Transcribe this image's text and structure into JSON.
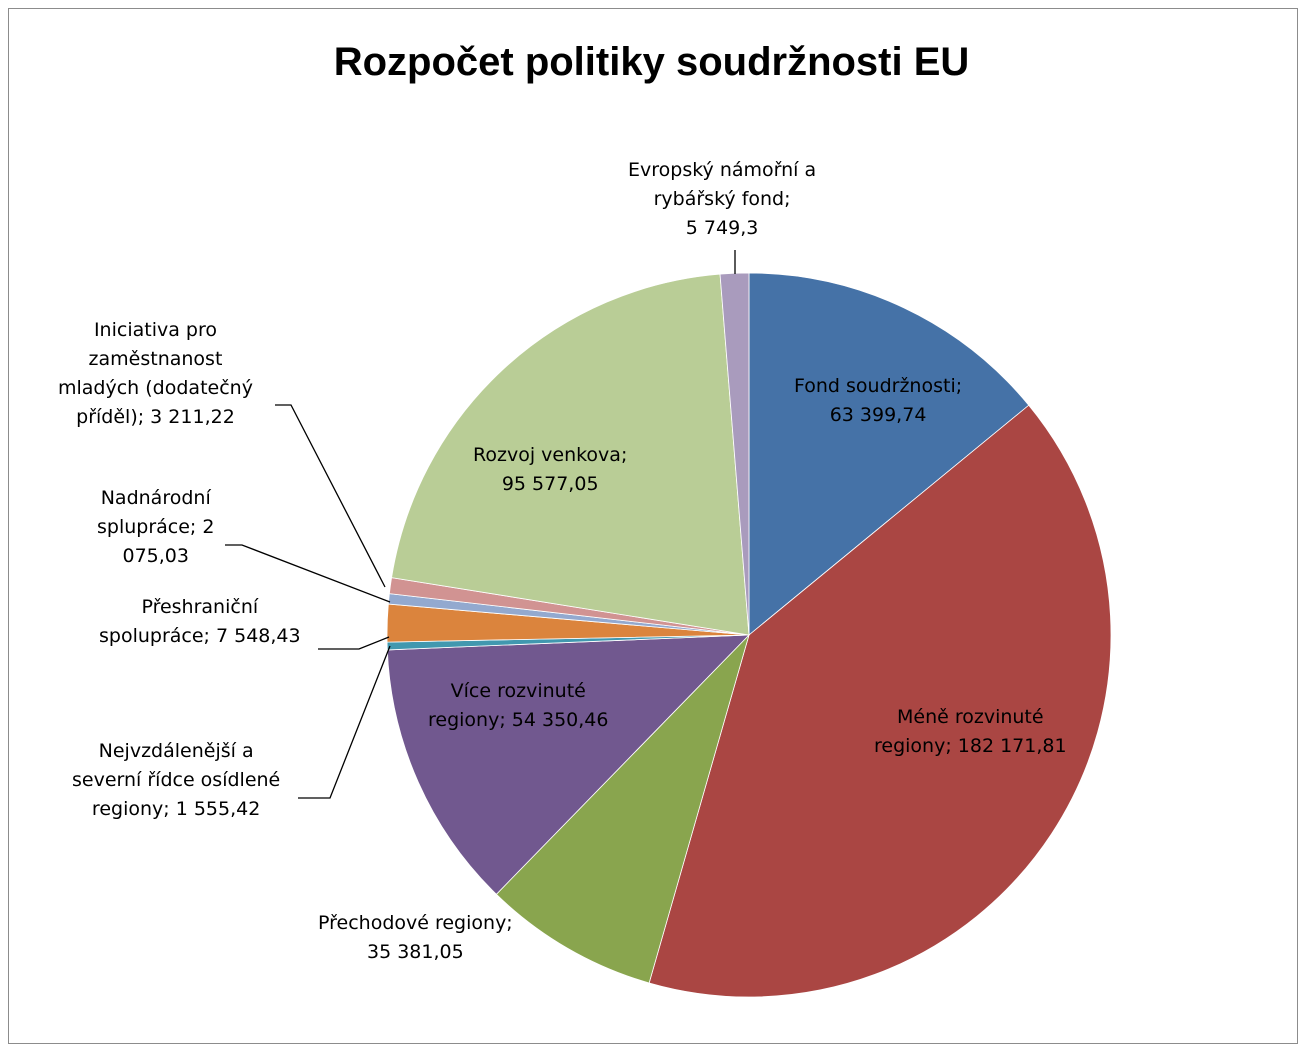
{
  "chart_data": {
    "type": "pie",
    "title": "Rozpočet politiky soudržnosti EU",
    "slices": [
      {
        "name": "Fond soudržnosti",
        "value": 63399.74,
        "value_label": "63 399,74",
        "label_lines": [
          "Fond soudržnosti;",
          "63 399,74"
        ],
        "color": "#4572A7"
      },
      {
        "name": "Méně rozvinuté regiony",
        "value": 182171.81,
        "value_label": "182 171,81",
        "label_lines": [
          "Méně rozvinuté",
          "regiony; 182 171,81"
        ],
        "color": "#AA4643"
      },
      {
        "name": "Přechodové regiony",
        "value": 35381.05,
        "value_label": "35 381,05",
        "label_lines": [
          "Přechodové regiony;",
          "35 381,05"
        ],
        "color": "#89A54E"
      },
      {
        "name": "Více rozvinuté regiony",
        "value": 54350.46,
        "value_label": "54 350,46",
        "label_lines": [
          "Více rozvinuté",
          "regiony; 54 350,46"
        ],
        "color": "#71588F"
      },
      {
        "name": "Nejvzdálenější a severní řídce osídlené regiony",
        "value": 1555.42,
        "value_label": "1 555,42",
        "label_lines": [
          "Nejvzdálenější a",
          "severní řídce osídlené",
          "regiony; 1 555,42"
        ],
        "color": "#4198AF"
      },
      {
        "name": "Přeshraniční spolupráce",
        "value": 7548.43,
        "value_label": "7 548,43",
        "label_lines": [
          "Přeshraniční",
          "spolupráce; 7 548,43"
        ],
        "color": "#DB843D"
      },
      {
        "name": "Nadnárodní splupráce",
        "value": 2075.03,
        "value_label": "2 075,03",
        "label_lines": [
          "Nadnárodní",
          "splupráce; 2",
          "075,03"
        ],
        "color": "#93A9CF"
      },
      {
        "name": "Iniciativa pro zaměstnanost mladých (dodatečný příděl)",
        "value": 3211.22,
        "value_label": "3 211,22",
        "label_lines": [
          "Iniciativa pro",
          "zaměstnanost",
          "mladých (dodatečný",
          "příděl); 3 211,22"
        ],
        "color": "#D19392"
      },
      {
        "name": "Rozvoj venkova",
        "value": 95577.05,
        "value_label": "95 577,05",
        "label_lines": [
          "Rozvoj venkova;",
          "95 577,05"
        ],
        "color": "#B9CD96"
      },
      {
        "name": "Evropský námořní a rybářský fond",
        "value": 5749.3,
        "value_label": "5 749,3",
        "label_lines": [
          "Evropský námořní a",
          "rybářský fond;",
          "5 749,3"
        ],
        "color": "#A99BBD"
      }
    ],
    "start_angle": "12 o'clock",
    "direction": "clockwise",
    "legend": "none",
    "data_labels": "category name; value"
  }
}
